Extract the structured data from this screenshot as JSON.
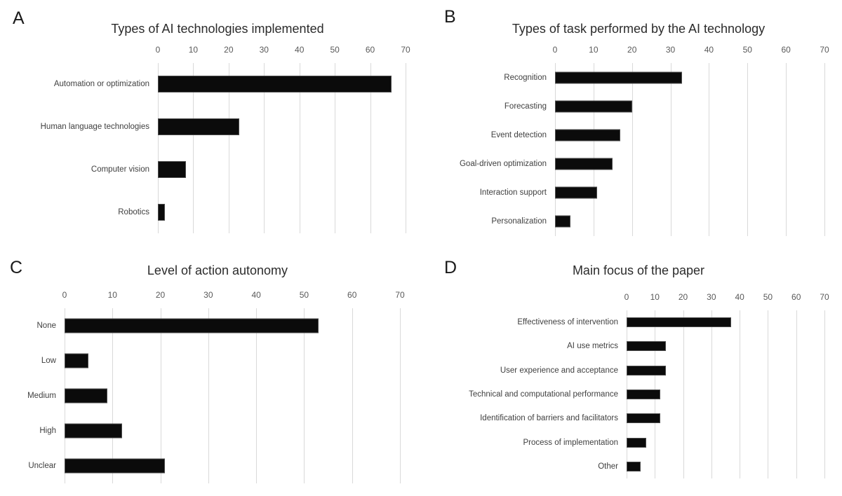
{
  "figure": {
    "background": "#ffffff",
    "bar_color": "#0b0b0b",
    "gridline_color": "#d9d9d9",
    "title_color": "#2b2b2b",
    "label_color": "#404040",
    "tick_color": "#595959"
  },
  "chart_data": [
    {
      "type": "bar",
      "orientation": "horizontal",
      "panel_letter": "A",
      "title": "Types of AI technologies implemented",
      "categories": [
        "Automation or optimization",
        "Human language technologies",
        "Computer vision",
        "Robotics"
      ],
      "values": [
        66,
        23,
        8,
        2
      ],
      "xlim": [
        0,
        70
      ],
      "xticks": [
        0,
        10,
        20,
        30,
        40,
        50,
        60,
        70
      ],
      "ticks_position": "top",
      "grid": true,
      "legend": false
    },
    {
      "type": "bar",
      "orientation": "horizontal",
      "panel_letter": "B",
      "title": "Types of task performed by the AI technology",
      "categories": [
        "Recognition",
        "Forecasting",
        "Event detection",
        "Goal-driven optimization",
        "Interaction support",
        "Personalization"
      ],
      "values": [
        33,
        20,
        17,
        15,
        11,
        4
      ],
      "xlim": [
        0,
        70
      ],
      "xticks": [
        0,
        10,
        20,
        30,
        40,
        50,
        60,
        70
      ],
      "ticks_position": "top",
      "grid": true,
      "legend": false
    },
    {
      "type": "bar",
      "orientation": "horizontal",
      "panel_letter": "C",
      "title": "Level of action autonomy",
      "categories": [
        "None",
        "Low",
        "Medium",
        "High",
        "Unclear"
      ],
      "values": [
        53,
        5,
        9,
        12,
        21
      ],
      "xlim": [
        0,
        70
      ],
      "xticks": [
        0,
        10,
        20,
        30,
        40,
        50,
        60,
        70
      ],
      "ticks_position": "top",
      "grid": true,
      "legend": false
    },
    {
      "type": "bar",
      "orientation": "horizontal",
      "panel_letter": "D",
      "title": "Main focus of the paper",
      "categories": [
        "Effectiveness of intervention",
        "AI use metrics",
        "User experience and acceptance",
        "Technical and computational performance",
        "Identification of barriers and facilitators",
        "Process of implementation",
        "Other"
      ],
      "values": [
        37,
        14,
        14,
        12,
        12,
        7,
        5
      ],
      "xlim": [
        0,
        70
      ],
      "xticks": [
        0,
        10,
        20,
        30,
        40,
        50,
        60,
        70
      ],
      "ticks_position": "top",
      "grid": true,
      "legend": false
    }
  ]
}
